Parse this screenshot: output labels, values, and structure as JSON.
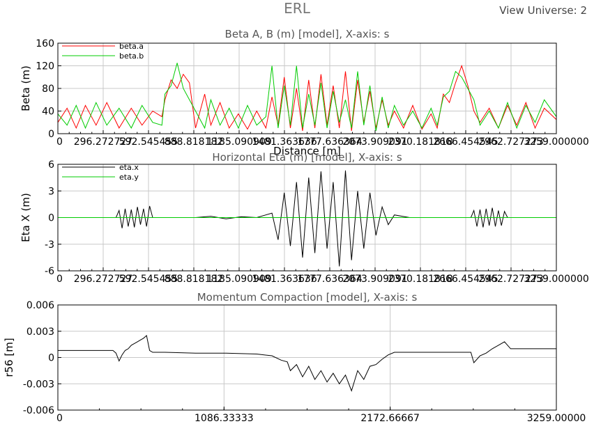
{
  "window": {
    "title": "ERL",
    "view_universe_label": "View Universe:",
    "view_universe_value": "2"
  },
  "colors": {
    "axis": "#000000",
    "grid": "#c8c8c8",
    "title": "#555555",
    "beta_a": "#ff0000",
    "beta_b": "#00cc00",
    "eta_x": "#000000",
    "eta_y": "#00cc00",
    "r56": "#000000"
  },
  "chart_data": [
    {
      "type": "line",
      "title": "Beta A, B (m) [model],  X-axis: s",
      "xlabel": "Distance [m]",
      "ylabel": "Beta (m)",
      "xlim": [
        0,
        3259
      ],
      "ylim": [
        0,
        160
      ],
      "yticks": [
        0,
        40,
        80,
        120,
        160
      ],
      "xtick_labels": [
        "0",
        "296.272727",
        "592.545455",
        "888.818182",
        "1185.090909",
        "1481.363636",
        "1777.636364",
        "2073.909091",
        "2370.181818",
        "2666.454545",
        "2962.727273",
        "3259.000000"
      ],
      "legend": "top-left",
      "grid": true,
      "series": [
        {
          "name": "beta.a",
          "x": [
            0,
            60,
            120,
            180,
            250,
            320,
            400,
            480,
            550,
            620,
            680,
            700,
            740,
            780,
            820,
            860,
            900,
            960,
            1000,
            1060,
            1120,
            1180,
            1240,
            1300,
            1360,
            1400,
            1440,
            1480,
            1520,
            1560,
            1600,
            1640,
            1680,
            1720,
            1760,
            1800,
            1840,
            1880,
            1920,
            1960,
            2000,
            2040,
            2080,
            2120,
            2160,
            2200,
            2260,
            2320,
            2380,
            2440,
            2480,
            2520,
            2560,
            2600,
            2640,
            2680,
            2720,
            2760,
            2820,
            2880,
            2940,
            3000,
            3060,
            3120,
            3180,
            3259
          ],
          "values": [
            20,
            45,
            10,
            50,
            15,
            55,
            10,
            45,
            15,
            40,
            30,
            60,
            95,
            80,
            105,
            90,
            10,
            70,
            15,
            55,
            10,
            35,
            8,
            40,
            10,
            65,
            15,
            100,
            10,
            80,
            5,
            95,
            10,
            105,
            15,
            85,
            10,
            110,
            5,
            95,
            20,
            75,
            10,
            60,
            15,
            40,
            10,
            50,
            8,
            35,
            10,
            70,
            55,
            90,
            120,
            85,
            40,
            20,
            45,
            10,
            50,
            15,
            55,
            10,
            45,
            25
          ]
        },
        {
          "name": "beta.b",
          "x": [
            0,
            60,
            120,
            180,
            250,
            320,
            400,
            480,
            550,
            620,
            680,
            700,
            740,
            780,
            820,
            860,
            900,
            960,
            1000,
            1060,
            1120,
            1180,
            1240,
            1300,
            1360,
            1400,
            1440,
            1480,
            1520,
            1560,
            1600,
            1640,
            1680,
            1720,
            1760,
            1800,
            1840,
            1880,
            1920,
            1960,
            2000,
            2040,
            2080,
            2120,
            2160,
            2200,
            2260,
            2320,
            2380,
            2440,
            2480,
            2520,
            2560,
            2600,
            2640,
            2680,
            2720,
            2760,
            2820,
            2880,
            2940,
            3000,
            3060,
            3120,
            3180,
            3259
          ],
          "values": [
            35,
            15,
            50,
            10,
            55,
            15,
            45,
            10,
            50,
            20,
            15,
            70,
            85,
            125,
            80,
            60,
            40,
            10,
            60,
            15,
            45,
            10,
            50,
            15,
            30,
            120,
            10,
            85,
            15,
            120,
            10,
            70,
            15,
            90,
            10,
            75,
            20,
            60,
            10,
            110,
            15,
            85,
            5,
            65,
            10,
            50,
            15,
            40,
            10,
            45,
            15,
            65,
            75,
            110,
            100,
            80,
            60,
            15,
            40,
            10,
            55,
            10,
            50,
            20,
            60,
            30
          ]
        }
      ]
    },
    {
      "type": "line",
      "title": "Horizontal Eta (m) [model],  X-axis: s",
      "xlabel": "",
      "ylabel": "Eta X (m)",
      "xlim": [
        0,
        3259
      ],
      "ylim": [
        -6,
        6
      ],
      "yticks": [
        -6,
        -3,
        0,
        3,
        6
      ],
      "xtick_labels": [
        "0",
        "296.272727",
        "592.545455",
        "888.818182",
        "1185.090909",
        "1481.363636",
        "1777.636364",
        "2073.909091",
        "2370.181818",
        "2666.454545",
        "2962.727273",
        "3259.000000"
      ],
      "legend": "top-left",
      "grid": true,
      "series": [
        {
          "name": "eta.x",
          "x": [
            0,
            380,
            400,
            420,
            440,
            460,
            480,
            500,
            520,
            540,
            560,
            580,
            600,
            620,
            700,
            900,
            1000,
            1100,
            1200,
            1300,
            1400,
            1440,
            1480,
            1520,
            1560,
            1600,
            1640,
            1680,
            1720,
            1760,
            1800,
            1840,
            1880,
            1920,
            1960,
            2000,
            2040,
            2080,
            2120,
            2160,
            2200,
            2300,
            2400,
            2500,
            2700,
            2720,
            2740,
            2760,
            2780,
            2800,
            2820,
            2840,
            2860,
            2880,
            2900,
            2920,
            2940,
            3259
          ],
          "values": [
            0,
            0,
            0.8,
            -1.2,
            1.0,
            -1.0,
            0.9,
            -1.1,
            1.2,
            -0.8,
            1.0,
            -1.0,
            1.3,
            0,
            0,
            0,
            0.15,
            -0.15,
            0.1,
            0,
            0.5,
            -2.5,
            2.8,
            -3.2,
            4.0,
            -4.5,
            4.5,
            -4.0,
            5.2,
            -3.5,
            4.0,
            -5.5,
            5.3,
            -4.8,
            3.0,
            -3.5,
            2.8,
            -2.0,
            1.2,
            -0.8,
            0.3,
            0,
            0,
            0,
            0,
            0.8,
            -1.0,
            0.9,
            -1.1,
            1.0,
            -0.9,
            1.1,
            -1.0,
            0.8,
            -0.9,
            0.7,
            0,
            0
          ]
        },
        {
          "name": "eta.y",
          "x": [
            0,
            3259
          ],
          "values": [
            0,
            0
          ]
        }
      ]
    },
    {
      "type": "line",
      "title": "Momentum Compaction [model],  X-axis: s",
      "xlabel": "",
      "ylabel": "r56 [m]",
      "xlim": [
        0,
        3259
      ],
      "ylim": [
        -0.006,
        0.006
      ],
      "yticks": [
        -0.006,
        -0.003,
        0,
        0.003,
        0.006
      ],
      "ytick_labels": [
        "-0.006",
        "-0.003",
        "0",
        "0.003",
        "0.006"
      ],
      "xtick_labels": [
        "0",
        "1086.33333",
        "2172.66667",
        "3259.00000"
      ],
      "grid": true,
      "series": [
        {
          "name": "r56",
          "x": [
            0,
            360,
            380,
            400,
            420,
            440,
            460,
            480,
            500,
            520,
            540,
            560,
            580,
            600,
            620,
            700,
            900,
            1100,
            1300,
            1400,
            1460,
            1500,
            1520,
            1560,
            1600,
            1640,
            1680,
            1720,
            1760,
            1800,
            1840,
            1880,
            1920,
            1960,
            2000,
            2040,
            2080,
            2120,
            2160,
            2200,
            2400,
            2700,
            2720,
            2760,
            2800,
            2840,
            2880,
            2920,
            2960,
            3259
          ],
          "values": [
            0.0008,
            0.0008,
            0.0005,
            -0.0004,
            0.0003,
            0.0008,
            0.001,
            0.0014,
            0.0016,
            0.0018,
            0.002,
            0.0022,
            0.0025,
            0.0008,
            0.0006,
            0.0006,
            0.0005,
            0.0005,
            0.0004,
            0.0002,
            -0.0003,
            -0.0005,
            -0.0015,
            -0.0008,
            -0.0022,
            -0.001,
            -0.0025,
            -0.0015,
            -0.0028,
            -0.0018,
            -0.003,
            -0.002,
            -0.0038,
            -0.0015,
            -0.0025,
            -0.001,
            -0.0008,
            -0.0002,
            0.0003,
            0.0006,
            0.0006,
            0.0006,
            -0.0006,
            0.0002,
            0.0005,
            0.001,
            0.0014,
            0.0018,
            0.001,
            0.001
          ]
        }
      ]
    }
  ]
}
